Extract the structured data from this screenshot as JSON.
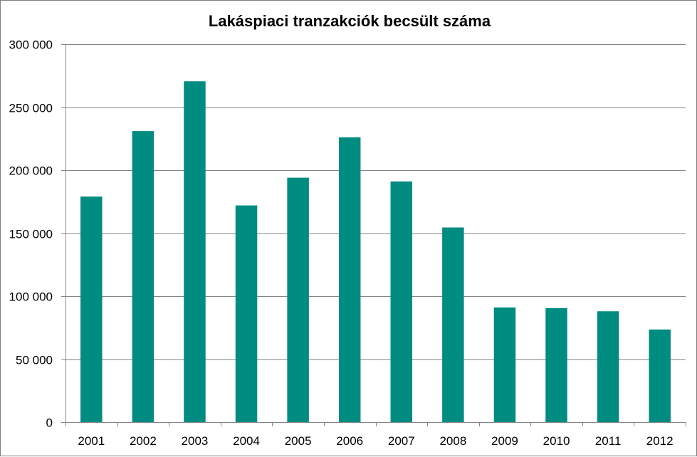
{
  "chart_data": {
    "type": "bar",
    "title": "Lakáspiaci tranzakciók becsült száma",
    "xlabel": "",
    "ylabel": "",
    "categories": [
      "2001",
      "2002",
      "2003",
      "2004",
      "2005",
      "2006",
      "2007",
      "2008",
      "2009",
      "2010",
      "2011",
      "2012"
    ],
    "values": [
      179000,
      231000,
      270500,
      172000,
      194000,
      226000,
      191000,
      154500,
      91000,
      90500,
      88000,
      73500
    ],
    "ylim": [
      0,
      300000
    ],
    "yticks": [
      0,
      50000,
      100000,
      150000,
      200000,
      250000,
      300000
    ],
    "ytick_labels": [
      "0",
      "50 000",
      "100 000",
      "150 000",
      "200 000",
      "250 000",
      "300 000"
    ],
    "grid": true,
    "legend": "none",
    "colors": {
      "bar": "#008c80",
      "grid": "#868686",
      "axis": "#868686"
    }
  }
}
